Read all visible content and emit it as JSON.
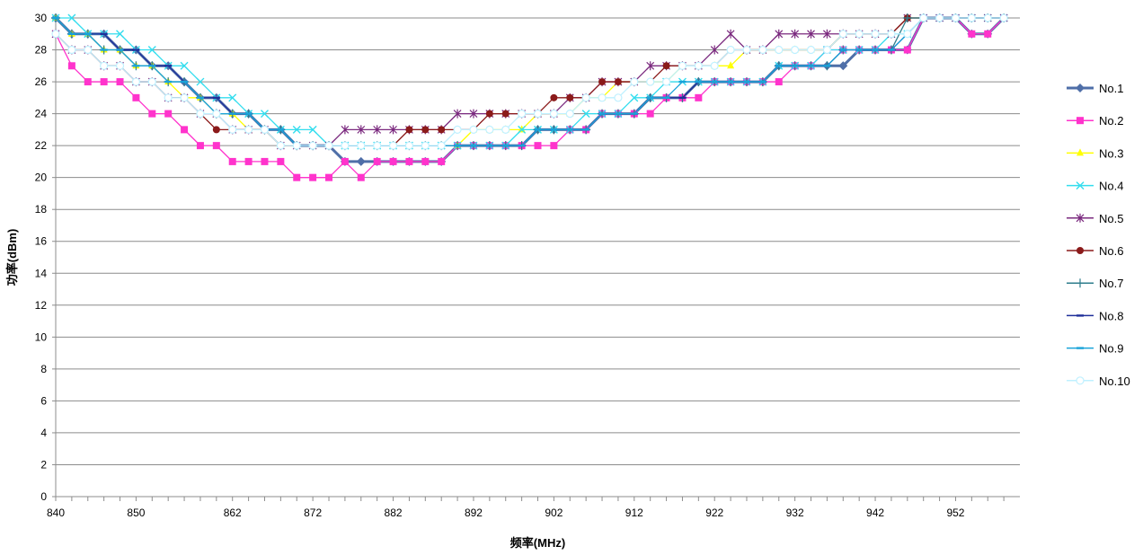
{
  "chart_data": {
    "type": "line",
    "xlabel": "频率(MHz)",
    "ylabel": "功率(dBm)",
    "xlim": [
      840,
      960
    ],
    "ylim": [
      0,
      30
    ],
    "grid": "horizontal",
    "legend_position": "right",
    "x_ticks": [
      840,
      850,
      862,
      872,
      882,
      892,
      902,
      912,
      922,
      932,
      942,
      952
    ],
    "y_ticks": [
      0,
      2,
      4,
      6,
      8,
      10,
      12,
      14,
      16,
      18,
      20,
      22,
      24,
      26,
      28,
      30
    ],
    "x": [
      840,
      842,
      844,
      846,
      848,
      850,
      852,
      854,
      856,
      858,
      860,
      862,
      864,
      866,
      868,
      870,
      872,
      874,
      876,
      878,
      880,
      882,
      884,
      886,
      888,
      890,
      892,
      894,
      896,
      898,
      900,
      902,
      904,
      906,
      908,
      910,
      912,
      914,
      916,
      918,
      920,
      922,
      924,
      926,
      928,
      930,
      932,
      934,
      936,
      938,
      940,
      942,
      944,
      946,
      948,
      950,
      952,
      954,
      956,
      958
    ],
    "series": [
      {
        "name": "No.1",
        "color": "#4F6FA8",
        "marker": "diamond",
        "values": [
          30,
          29,
          29,
          29,
          28,
          28,
          27,
          27,
          26,
          25,
          25,
          24,
          24,
          23,
          23,
          22,
          22,
          22,
          21,
          21,
          21,
          21,
          21,
          21,
          21,
          22,
          22,
          22,
          22,
          22,
          23,
          23,
          23,
          23,
          24,
          24,
          24,
          25,
          25,
          25,
          26,
          26,
          26,
          26,
          26,
          27,
          27,
          27,
          27,
          27,
          28,
          28,
          28,
          28,
          30,
          30,
          30,
          29,
          29,
          30
        ]
      },
      {
        "name": "No.2",
        "color": "#FF33CC",
        "marker": "square",
        "values": [
          29,
          27,
          26,
          26,
          26,
          25,
          24,
          24,
          23,
          22,
          22,
          21,
          21,
          21,
          21,
          20,
          20,
          20,
          21,
          20,
          21,
          21,
          21,
          21,
          21,
          22,
          22,
          22,
          22,
          22,
          22,
          22,
          23,
          23,
          24,
          24,
          24,
          24,
          25,
          25,
          25,
          26,
          26,
          26,
          26,
          26,
          27,
          27,
          28,
          28,
          28,
          28,
          28,
          28,
          30,
          30,
          30,
          29,
          29,
          30
        ]
      },
      {
        "name": "No.3",
        "color": "#FFFF00",
        "marker": "triangle",
        "values": [
          30,
          29,
          29,
          28,
          28,
          27,
          27,
          26,
          25,
          25,
          24,
          24,
          23,
          23,
          22,
          22,
          22,
          22,
          22,
          22,
          22,
          22,
          22,
          22,
          22,
          22,
          23,
          23,
          23,
          23,
          24,
          24,
          24,
          25,
          25,
          26,
          26,
          26,
          26,
          27,
          27,
          27,
          27,
          28,
          28,
          28,
          28,
          28,
          28,
          29,
          29,
          29,
          29,
          30,
          30,
          30,
          30,
          30,
          30,
          30
        ]
      },
      {
        "name": "No.4",
        "color": "#33DDEE",
        "marker": "x",
        "values": [
          30,
          30,
          29,
          29,
          29,
          28,
          28,
          27,
          27,
          26,
          25,
          25,
          24,
          24,
          23,
          23,
          23,
          22,
          22,
          22,
          22,
          22,
          22,
          22,
          22,
          22,
          22,
          22,
          22,
          23,
          23,
          23,
          23,
          24,
          24,
          24,
          25,
          25,
          26,
          26,
          26,
          26,
          26,
          26,
          26,
          27,
          27,
          27,
          28,
          28,
          28,
          28,
          29,
          29,
          30,
          30,
          30,
          30,
          30,
          30
        ]
      },
      {
        "name": "No.5",
        "color": "#7B2A7F",
        "marker": "asterisk",
        "values": [
          29,
          28,
          28,
          27,
          27,
          26,
          26,
          25,
          25,
          24,
          24,
          23,
          23,
          23,
          22,
          22,
          22,
          22,
          23,
          23,
          23,
          23,
          23,
          23,
          23,
          24,
          24,
          24,
          24,
          24,
          24,
          24,
          25,
          25,
          26,
          26,
          26,
          27,
          27,
          27,
          27,
          28,
          29,
          28,
          28,
          29,
          29,
          29,
          29,
          29,
          29,
          29,
          29,
          30,
          30,
          30,
          30,
          30,
          30,
          30
        ]
      },
      {
        "name": "No.6",
        "color": "#8B1A1A",
        "marker": "circle",
        "values": [
          29,
          28,
          28,
          27,
          27,
          26,
          26,
          25,
          25,
          24,
          23,
          23,
          23,
          23,
          22,
          22,
          22,
          22,
          22,
          22,
          22,
          22,
          23,
          23,
          23,
          23,
          23,
          24,
          24,
          24,
          24,
          25,
          25,
          25,
          26,
          26,
          26,
          26,
          27,
          27,
          27,
          27,
          28,
          28,
          28,
          28,
          28,
          28,
          28,
          29,
          29,
          29,
          29,
          30,
          30,
          30,
          30,
          30,
          30,
          30
        ]
      },
      {
        "name": "No.7",
        "color": "#2E7D8C",
        "marker": "plus",
        "values": [
          30,
          29,
          29,
          28,
          28,
          27,
          27,
          26,
          26,
          25,
          24,
          24,
          24,
          23,
          23,
          22,
          22,
          22,
          22,
          22,
          22,
          22,
          22,
          22,
          22,
          22,
          22,
          22,
          22,
          22,
          23,
          23,
          23,
          23,
          24,
          24,
          24,
          25,
          25,
          25,
          26,
          26,
          26,
          26,
          26,
          27,
          27,
          27,
          27,
          28,
          28,
          28,
          28,
          30,
          30,
          30,
          30,
          30,
          30,
          30
        ]
      },
      {
        "name": "No.8",
        "color": "#1F2F9A",
        "marker": "dash",
        "values": [
          30,
          29,
          29,
          29,
          28,
          28,
          27,
          27,
          26,
          25,
          25,
          24,
          24,
          23,
          23,
          22,
          22,
          22,
          22,
          22,
          22,
          22,
          22,
          22,
          22,
          22,
          22,
          22,
          22,
          22,
          23,
          23,
          23,
          23,
          24,
          24,
          24,
          25,
          25,
          25,
          26,
          26,
          26,
          26,
          26,
          27,
          27,
          27,
          27,
          28,
          28,
          28,
          28,
          29,
          30,
          30,
          30,
          30,
          30,
          30
        ]
      },
      {
        "name": "No.9",
        "color": "#1AA3D9",
        "marker": "dash",
        "values": [
          30,
          29,
          29,
          28,
          28,
          27,
          27,
          26,
          26,
          25,
          24,
          24,
          24,
          23,
          23,
          22,
          22,
          22,
          22,
          22,
          22,
          22,
          22,
          22,
          22,
          22,
          22,
          22,
          22,
          22,
          23,
          23,
          23,
          23,
          24,
          24,
          24,
          25,
          25,
          26,
          26,
          26,
          26,
          26,
          26,
          27,
          27,
          27,
          27,
          28,
          28,
          28,
          28,
          29,
          30,
          30,
          30,
          30,
          30,
          30
        ]
      },
      {
        "name": "No.10",
        "color": "#BFF0FF",
        "marker": "circle-open",
        "values": [
          29,
          28,
          28,
          27,
          27,
          26,
          26,
          25,
          25,
          24,
          24,
          23,
          23,
          23,
          22,
          22,
          22,
          22,
          22,
          22,
          22,
          22,
          22,
          22,
          22,
          23,
          23,
          23,
          23,
          24,
          24,
          24,
          24,
          25,
          25,
          25,
          26,
          26,
          26,
          27,
          27,
          27,
          28,
          28,
          28,
          28,
          28,
          28,
          28,
          29,
          29,
          29,
          29,
          29,
          30,
          30,
          30,
          30,
          30,
          30
        ]
      }
    ]
  }
}
